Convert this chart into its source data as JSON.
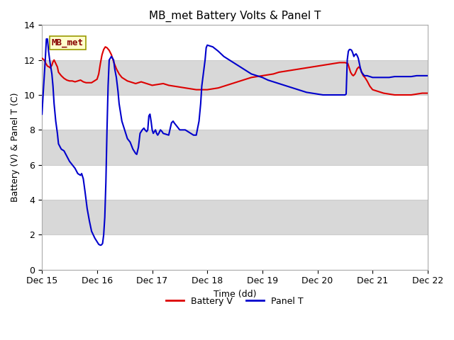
{
  "title": "MB_met Battery Volts & Panel T",
  "xlabel": "Time (dd)",
  "ylabel": "Battery (V) & Panel T (C)",
  "ylim": [
    0,
    14
  ],
  "yticks": [
    0,
    2,
    4,
    6,
    8,
    10,
    12,
    14
  ],
  "xlim": [
    0.0,
    7.0
  ],
  "xtick_positions": [
    0,
    1,
    2,
    3,
    4,
    5,
    6,
    7
  ],
  "xtick_labels": [
    "Dec 15",
    "Dec 16",
    "Dec 17",
    "Dec 18",
    "Dec 19",
    "Dec 20",
    "Dec 21",
    "Dec 22"
  ],
  "battery_color": "#dd0000",
  "panel_color": "#0000cc",
  "background_color": "#ffffff",
  "band_gray": "#d8d8d8",
  "band_white": "#f0f0f0",
  "legend_battery": "Battery V",
  "legend_panel": "Panel T",
  "label_box_text": "MB_met",
  "label_box_color": "#ffffcc",
  "label_box_edge": "#999900",
  "label_text_color": "#880000",
  "battery_v": [
    [
      0.0,
      12.1
    ],
    [
      0.04,
      12.0
    ],
    [
      0.07,
      11.8
    ],
    [
      0.1,
      11.65
    ],
    [
      0.13,
      11.6
    ],
    [
      0.15,
      11.55
    ],
    [
      0.18,
      11.7
    ],
    [
      0.2,
      11.9
    ],
    [
      0.22,
      12.0
    ],
    [
      0.25,
      11.8
    ],
    [
      0.28,
      11.6
    ],
    [
      0.3,
      11.3
    ],
    [
      0.35,
      11.1
    ],
    [
      0.4,
      10.95
    ],
    [
      0.45,
      10.85
    ],
    [
      0.5,
      10.8
    ],
    [
      0.55,
      10.8
    ],
    [
      0.6,
      10.75
    ],
    [
      0.65,
      10.8
    ],
    [
      0.7,
      10.85
    ],
    [
      0.75,
      10.75
    ],
    [
      0.8,
      10.7
    ],
    [
      0.85,
      10.7
    ],
    [
      0.9,
      10.7
    ],
    [
      0.95,
      10.8
    ],
    [
      1.0,
      10.9
    ],
    [
      1.03,
      11.2
    ],
    [
      1.06,
      11.8
    ],
    [
      1.09,
      12.3
    ],
    [
      1.12,
      12.6
    ],
    [
      1.15,
      12.75
    ],
    [
      1.18,
      12.7
    ],
    [
      1.22,
      12.55
    ],
    [
      1.26,
      12.3
    ],
    [
      1.3,
      11.9
    ],
    [
      1.35,
      11.5
    ],
    [
      1.4,
      11.2
    ],
    [
      1.45,
      11.0
    ],
    [
      1.5,
      10.9
    ],
    [
      1.55,
      10.8
    ],
    [
      1.6,
      10.75
    ],
    [
      1.65,
      10.7
    ],
    [
      1.7,
      10.65
    ],
    [
      1.75,
      10.7
    ],
    [
      1.8,
      10.75
    ],
    [
      1.85,
      10.7
    ],
    [
      1.9,
      10.65
    ],
    [
      1.95,
      10.6
    ],
    [
      2.0,
      10.55
    ],
    [
      2.1,
      10.6
    ],
    [
      2.2,
      10.65
    ],
    [
      2.3,
      10.55
    ],
    [
      2.4,
      10.5
    ],
    [
      2.5,
      10.45
    ],
    [
      2.6,
      10.4
    ],
    [
      2.7,
      10.35
    ],
    [
      2.8,
      10.3
    ],
    [
      2.9,
      10.3
    ],
    [
      3.0,
      10.3
    ],
    [
      3.1,
      10.35
    ],
    [
      3.2,
      10.4
    ],
    [
      3.3,
      10.5
    ],
    [
      3.4,
      10.6
    ],
    [
      3.5,
      10.7
    ],
    [
      3.6,
      10.8
    ],
    [
      3.7,
      10.9
    ],
    [
      3.8,
      11.0
    ],
    [
      3.9,
      11.05
    ],
    [
      4.0,
      11.1
    ],
    [
      4.1,
      11.15
    ],
    [
      4.2,
      11.2
    ],
    [
      4.3,
      11.3
    ],
    [
      4.4,
      11.35
    ],
    [
      4.5,
      11.4
    ],
    [
      4.6,
      11.45
    ],
    [
      4.7,
      11.5
    ],
    [
      4.8,
      11.55
    ],
    [
      4.9,
      11.6
    ],
    [
      5.0,
      11.65
    ],
    [
      5.1,
      11.7
    ],
    [
      5.2,
      11.75
    ],
    [
      5.3,
      11.8
    ],
    [
      5.4,
      11.85
    ],
    [
      5.5,
      11.85
    ],
    [
      5.55,
      11.8
    ],
    [
      5.58,
      11.5
    ],
    [
      5.6,
      11.3
    ],
    [
      5.63,
      11.15
    ],
    [
      5.65,
      11.1
    ],
    [
      5.68,
      11.2
    ],
    [
      5.72,
      11.5
    ],
    [
      5.75,
      11.6
    ],
    [
      5.78,
      11.5
    ],
    [
      5.8,
      11.3
    ],
    [
      5.83,
      11.1
    ],
    [
      5.86,
      11.0
    ],
    [
      5.9,
      10.8
    ],
    [
      5.95,
      10.5
    ],
    [
      6.0,
      10.3
    ],
    [
      6.1,
      10.2
    ],
    [
      6.2,
      10.1
    ],
    [
      6.3,
      10.05
    ],
    [
      6.4,
      10.0
    ],
    [
      6.5,
      10.0
    ],
    [
      6.6,
      10.0
    ],
    [
      6.7,
      10.0
    ],
    [
      6.8,
      10.05
    ],
    [
      6.9,
      10.1
    ],
    [
      7.0,
      10.1
    ]
  ],
  "panel_t": [
    [
      0.0,
      8.9
    ],
    [
      0.03,
      10.5
    ],
    [
      0.06,
      12.0
    ],
    [
      0.08,
      13.2
    ],
    [
      0.1,
      13.2
    ],
    [
      0.12,
      12.5
    ],
    [
      0.14,
      12.0
    ],
    [
      0.16,
      11.6
    ],
    [
      0.18,
      11.2
    ],
    [
      0.2,
      10.5
    ],
    [
      0.22,
      9.5
    ],
    [
      0.25,
      8.5
    ],
    [
      0.28,
      7.8
    ],
    [
      0.3,
      7.2
    ],
    [
      0.35,
      6.9
    ],
    [
      0.4,
      6.8
    ],
    [
      0.45,
      6.5
    ],
    [
      0.5,
      6.2
    ],
    [
      0.55,
      6.0
    ],
    [
      0.6,
      5.8
    ],
    [
      0.65,
      5.5
    ],
    [
      0.7,
      5.4
    ],
    [
      0.72,
      5.5
    ],
    [
      0.75,
      5.2
    ],
    [
      0.78,
      4.5
    ],
    [
      0.82,
      3.5
    ],
    [
      0.86,
      2.8
    ],
    [
      0.9,
      2.2
    ],
    [
      0.93,
      2.0
    ],
    [
      0.96,
      1.8
    ],
    [
      1.0,
      1.6
    ],
    [
      1.03,
      1.45
    ],
    [
      1.06,
      1.4
    ],
    [
      1.08,
      1.42
    ],
    [
      1.1,
      1.5
    ],
    [
      1.12,
      2.0
    ],
    [
      1.14,
      3.0
    ],
    [
      1.16,
      5.0
    ],
    [
      1.18,
      8.0
    ],
    [
      1.2,
      10.5
    ],
    [
      1.22,
      12.0
    ],
    [
      1.24,
      12.1
    ],
    [
      1.26,
      12.2
    ],
    [
      1.28,
      12.1
    ],
    [
      1.3,
      12.0
    ],
    [
      1.32,
      11.5
    ],
    [
      1.35,
      11.0
    ],
    [
      1.38,
      10.2
    ],
    [
      1.4,
      9.5
    ],
    [
      1.45,
      8.5
    ],
    [
      1.5,
      8.0
    ],
    [
      1.55,
      7.5
    ],
    [
      1.6,
      7.3
    ],
    [
      1.65,
      6.9
    ],
    [
      1.7,
      6.65
    ],
    [
      1.72,
      6.6
    ],
    [
      1.75,
      7.0
    ],
    [
      1.78,
      7.8
    ],
    [
      1.8,
      7.9
    ],
    [
      1.82,
      8.0
    ],
    [
      1.85,
      8.1
    ],
    [
      1.87,
      8.0
    ],
    [
      1.9,
      7.9
    ],
    [
      1.92,
      8.0
    ],
    [
      1.94,
      8.8
    ],
    [
      1.96,
      8.9
    ],
    [
      1.98,
      8.5
    ],
    [
      2.0,
      8.0
    ],
    [
      2.02,
      7.8
    ],
    [
      2.04,
      7.9
    ],
    [
      2.06,
      8.0
    ],
    [
      2.08,
      7.8
    ],
    [
      2.1,
      7.7
    ],
    [
      2.12,
      7.8
    ],
    [
      2.15,
      8.0
    ],
    [
      2.18,
      7.9
    ],
    [
      2.2,
      7.8
    ],
    [
      2.25,
      7.75
    ],
    [
      2.3,
      7.7
    ],
    [
      2.35,
      8.4
    ],
    [
      2.38,
      8.5
    ],
    [
      2.4,
      8.4
    ],
    [
      2.45,
      8.2
    ],
    [
      2.5,
      8.0
    ],
    [
      2.55,
      8.0
    ],
    [
      2.6,
      8.0
    ],
    [
      2.65,
      7.9
    ],
    [
      2.7,
      7.8
    ],
    [
      2.75,
      7.7
    ],
    [
      2.8,
      7.7
    ],
    [
      2.85,
      8.5
    ],
    [
      2.88,
      9.5
    ],
    [
      2.9,
      10.5
    ],
    [
      2.92,
      11.0
    ],
    [
      2.94,
      11.5
    ],
    [
      2.96,
      12.0
    ],
    [
      2.98,
      12.7
    ],
    [
      3.0,
      12.85
    ],
    [
      3.05,
      12.8
    ],
    [
      3.1,
      12.75
    ],
    [
      3.2,
      12.5
    ],
    [
      3.3,
      12.2
    ],
    [
      3.4,
      12.0
    ],
    [
      3.5,
      11.8
    ],
    [
      3.6,
      11.6
    ],
    [
      3.7,
      11.4
    ],
    [
      3.8,
      11.2
    ],
    [
      3.9,
      11.1
    ],
    [
      4.0,
      11.0
    ],
    [
      4.1,
      10.85
    ],
    [
      4.2,
      10.75
    ],
    [
      4.3,
      10.65
    ],
    [
      4.4,
      10.55
    ],
    [
      4.5,
      10.45
    ],
    [
      4.6,
      10.35
    ],
    [
      4.7,
      10.25
    ],
    [
      4.8,
      10.15
    ],
    [
      4.9,
      10.1
    ],
    [
      5.0,
      10.05
    ],
    [
      5.1,
      10.0
    ],
    [
      5.2,
      10.0
    ],
    [
      5.5,
      10.0
    ],
    [
      5.52,
      10.05
    ],
    [
      5.54,
      12.0
    ],
    [
      5.56,
      12.5
    ],
    [
      5.58,
      12.6
    ],
    [
      5.6,
      12.6
    ],
    [
      5.62,
      12.55
    ],
    [
      5.64,
      12.4
    ],
    [
      5.66,
      12.2
    ],
    [
      5.68,
      12.3
    ],
    [
      5.7,
      12.35
    ],
    [
      5.72,
      12.25
    ],
    [
      5.74,
      12.1
    ],
    [
      5.76,
      11.8
    ],
    [
      5.78,
      11.5
    ],
    [
      5.8,
      11.3
    ],
    [
      5.85,
      11.1
    ],
    [
      5.9,
      11.1
    ],
    [
      6.0,
      11.0
    ],
    [
      6.1,
      11.0
    ],
    [
      6.2,
      11.0
    ],
    [
      6.3,
      11.0
    ],
    [
      6.4,
      11.05
    ],
    [
      6.5,
      11.05
    ],
    [
      6.6,
      11.05
    ],
    [
      6.7,
      11.05
    ],
    [
      6.8,
      11.1
    ],
    [
      6.9,
      11.1
    ],
    [
      7.0,
      11.1
    ]
  ]
}
